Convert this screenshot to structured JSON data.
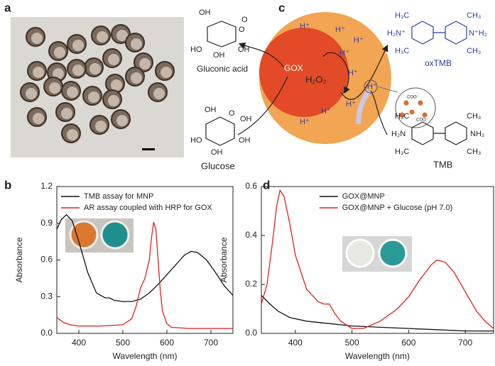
{
  "panels": {
    "a": "a",
    "b": "b",
    "c": "c",
    "d": "d"
  },
  "diagram": {
    "gluconic_acid": "Gluconic acid",
    "glucose": "Glucose",
    "gox": "GOX",
    "h2o2": "H₂O₂",
    "protons": [
      "H⁺",
      "H⁺",
      "H⁺",
      "H⁺",
      "H⁺",
      "H⁺",
      "H⁺",
      "H⁺",
      "H⁺"
    ],
    "oxtmb": "oxTMB",
    "tmb": "TMB",
    "coo": [
      "COO⁻",
      "COO⁻"
    ],
    "gluconic_atoms": [
      "O",
      "O",
      "OH",
      "HO",
      "OH",
      "OH"
    ],
    "glucose_atoms": [
      "O",
      "OH",
      "HO",
      "OH",
      "OH",
      "OH"
    ],
    "oxtmb_atoms": [
      "H₃C",
      "H₂N⁺",
      "H₃C",
      "CH₃",
      "N⁺H₂",
      "CH₃"
    ],
    "tmb_atoms": [
      "H₃C",
      "H₂N",
      "H₃C",
      "CH₃",
      "NH₂",
      "CH₃"
    ]
  },
  "chart_data": [
    {
      "type": "line",
      "xlabel": "Wavelength (nm)",
      "ylabel": "Absorbance",
      "xlim": [
        350,
        750
      ],
      "ylim": [
        0,
        1.2
      ],
      "xticks": [
        400,
        500,
        600,
        700
      ],
      "yticks": [
        {
          "value": 0,
          "label": "0.0"
        },
        0.3,
        0.6,
        0.9,
        1.2
      ],
      "legend": "upper left",
      "series": [
        {
          "name": "TMB assay for MNP",
          "color": "#111111",
          "x": [
            350,
            360,
            372,
            385,
            400,
            420,
            440,
            460,
            470,
            480,
            500,
            520,
            540,
            560,
            580,
            600,
            620,
            640,
            655,
            670,
            690,
            710,
            730,
            750
          ],
          "values": [
            0.85,
            0.93,
            0.97,
            0.92,
            0.75,
            0.5,
            0.33,
            0.29,
            0.29,
            0.27,
            0.26,
            0.26,
            0.28,
            0.33,
            0.4,
            0.48,
            0.56,
            0.64,
            0.67,
            0.66,
            0.6,
            0.5,
            0.39,
            0.31
          ]
        },
        {
          "name": "AR assay coupled with HRP for GOX",
          "color": "#e01e1e",
          "x": [
            350,
            365,
            380,
            400,
            450,
            500,
            520,
            530,
            540,
            550,
            560,
            565,
            570,
            575,
            580,
            585,
            590,
            600,
            610,
            650,
            700,
            750
          ],
          "values": [
            0.13,
            0.09,
            0.07,
            0.06,
            0.06,
            0.07,
            0.12,
            0.22,
            0.37,
            0.45,
            0.6,
            0.78,
            0.91,
            0.85,
            0.6,
            0.35,
            0.18,
            0.08,
            0.05,
            0.04,
            0.04,
            0.04
          ]
        }
      ]
    },
    {
      "type": "line",
      "xlabel": "Wavelength (nm)",
      "ylabel": "Absorbance",
      "xlim": [
        340,
        750
      ],
      "ylim": [
        0,
        0.6
      ],
      "xticks": [
        400,
        500,
        600,
        700
      ],
      "yticks": [
        {
          "value": 0,
          "label": "0.0"
        },
        0.2,
        0.4,
        0.6
      ],
      "legend": "upper center",
      "series": [
        {
          "name": "GOX@MNP",
          "color": "#111111",
          "x": [
            340,
            355,
            370,
            390,
            420,
            460,
            500,
            550,
            600,
            650,
            700,
            750
          ],
          "values": [
            0.155,
            0.12,
            0.09,
            0.065,
            0.05,
            0.04,
            0.03,
            0.025,
            0.02,
            0.015,
            0.01,
            0.01
          ]
        },
        {
          "name": "GOX@MNP + Glucose (pH 7.0)",
          "color": "#e01e1e",
          "x": [
            340,
            350,
            360,
            367,
            373,
            380,
            390,
            400,
            420,
            440,
            450,
            460,
            470,
            480,
            500,
            520,
            550,
            580,
            600,
            620,
            640,
            650,
            665,
            680,
            700,
            720,
            735,
            750
          ],
          "values": [
            0.12,
            0.2,
            0.38,
            0.52,
            0.585,
            0.56,
            0.45,
            0.32,
            0.18,
            0.13,
            0.12,
            0.12,
            0.08,
            0.05,
            0.02,
            0.02,
            0.05,
            0.1,
            0.15,
            0.22,
            0.28,
            0.3,
            0.29,
            0.25,
            0.17,
            0.09,
            0.05,
            0.02
          ]
        }
      ]
    }
  ]
}
